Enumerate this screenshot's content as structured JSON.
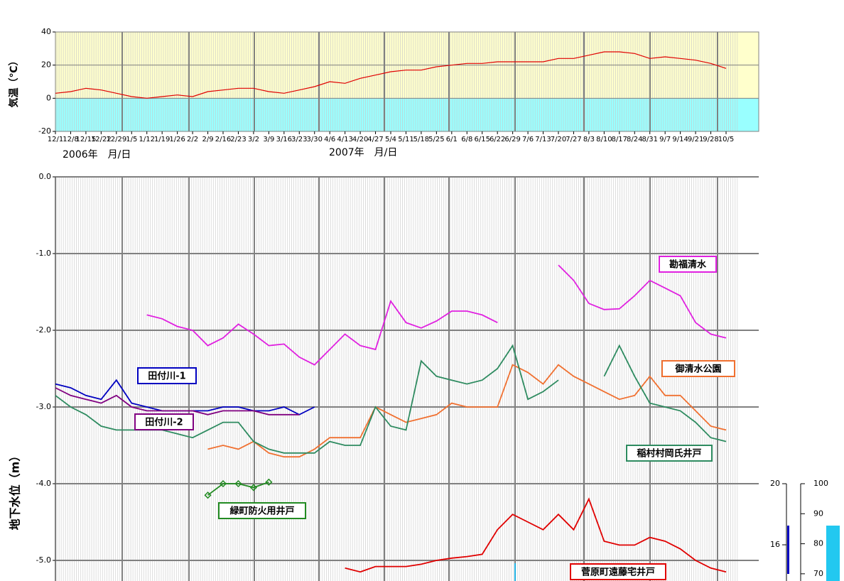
{
  "chart_data": [
    {
      "type": "line",
      "ylabel": "気温（℃）",
      "annotations": [
        "2006年　月/日",
        "2007年　月/日"
      ],
      "categories": [
        "12/1",
        "12/8",
        "12/15",
        "12/22",
        "12/29",
        "1/5",
        "1/12",
        "1/19",
        "1/26",
        "2/2",
        "2/9",
        "2/16",
        "2/23",
        "3/2",
        "3/9",
        "3/16",
        "3/23",
        "3/30",
        "4/6",
        "4/13",
        "4/20",
        "4/27",
        "5/4",
        "5/11",
        "5/18",
        "5/25",
        "6/1",
        "6/8",
        "6/15",
        "6/22",
        "6/29",
        "7/6",
        "7/13",
        "7/20",
        "7/27",
        "8/3",
        "8/10",
        "8/17",
        "8/24",
        "8/31",
        "9/7",
        "9/14",
        "9/21",
        "9/28",
        "10/5"
      ],
      "values": [
        3,
        4,
        6,
        5,
        3,
        1,
        0,
        1,
        2,
        1,
        4,
        5,
        6,
        6,
        4,
        3,
        5,
        7,
        10,
        9,
        12,
        14,
        16,
        17,
        17,
        19,
        20,
        21,
        21,
        22,
        22,
        22,
        22,
        24,
        24,
        26,
        28,
        28,
        27,
        24,
        25,
        24,
        23,
        21,
        18
      ],
      "color": "#e00000",
      "ylim": [
        -20,
        40
      ],
      "yticks": [
        40,
        20,
        0,
        -20
      ],
      "grid": true
    },
    {
      "type": "line",
      "ylabel": "地下水位（m）",
      "categories": [
        null,
        null,
        null,
        null,
        null,
        null,
        null,
        null,
        null,
        null,
        null,
        null,
        null,
        null,
        null,
        null,
        null,
        null,
        null,
        null,
        null,
        null,
        null,
        null,
        null,
        null,
        null,
        null,
        null,
        null,
        null,
        null,
        null,
        null,
        null,
        null,
        null,
        null,
        null,
        null,
        null,
        null,
        null,
        null,
        null
      ],
      "series": [
        {
          "name": "勘福清水",
          "color": "#e020e0",
          "values": [
            null,
            null,
            null,
            null,
            null,
            null,
            -1.8,
            -1.85,
            -1.95,
            -2.0,
            -2.2,
            -2.1,
            -1.92,
            -2.05,
            -2.2,
            -2.18,
            -2.35,
            -2.45,
            -2.25,
            -2.05,
            -2.2,
            -2.25,
            -1.62,
            -1.9,
            -1.97,
            -1.88,
            -1.75,
            -1.75,
            -1.8,
            -1.9,
            null,
            null,
            null,
            -1.15,
            -1.35,
            -1.65,
            -1.73,
            -1.72,
            -1.55,
            -1.35,
            -1.45,
            -1.55,
            -1.9,
            -2.05,
            -2.1
          ]
        },
        {
          "name": "御清水公園",
          "color": "#f07030",
          "values": [
            null,
            null,
            null,
            null,
            null,
            null,
            null,
            null,
            null,
            null,
            -3.55,
            -3.5,
            -3.55,
            -3.45,
            -3.6,
            -3.65,
            -3.65,
            -3.55,
            -3.4,
            -3.4,
            -3.4,
            -3.0,
            -3.1,
            -3.2,
            -3.15,
            -3.1,
            -2.95,
            -3.0,
            -3.0,
            -3.0,
            -2.45,
            -2.55,
            -2.7,
            -2.45,
            -2.6,
            -2.7,
            -2.8,
            -2.9,
            -2.85,
            -2.6,
            -2.85,
            -2.85,
            -3.05,
            -3.25,
            -3.3
          ]
        },
        {
          "name": "稲村村岡氏井戸",
          "color": "#2e8b60",
          "values": [
            -2.85,
            -3.0,
            -3.1,
            -3.25,
            -3.3,
            -3.3,
            -3.3,
            -3.3,
            -3.35,
            -3.4,
            -3.3,
            -3.2,
            -3.2,
            -3.45,
            -3.55,
            -3.6,
            -3.6,
            -3.6,
            -3.45,
            -3.5,
            -3.5,
            -3.0,
            -3.25,
            -3.3,
            -2.4,
            -2.6,
            -2.65,
            -2.7,
            -2.65,
            -2.5,
            -2.2,
            -2.9,
            -2.8,
            -2.65,
            null,
            null,
            -2.6,
            -2.2,
            -2.6,
            -2.95,
            -3.0,
            -3.05,
            -3.2,
            -3.4,
            -3.45
          ]
        },
        {
          "name": "田付川-1",
          "color": "#0000c0",
          "values": [
            -2.7,
            -2.75,
            -2.85,
            -2.9,
            -2.65,
            -2.95,
            -3.0,
            -3.05,
            -3.05,
            -3.05,
            -3.05,
            -3.0,
            -3.0,
            -3.05,
            -3.05,
            -3.0,
            -3.1,
            -3.0,
            null,
            null,
            null,
            null,
            null,
            null,
            null,
            null,
            null,
            null,
            null,
            null,
            null,
            null,
            null,
            null,
            null,
            null,
            null,
            null,
            null,
            null,
            null,
            null,
            null,
            null,
            null
          ]
        },
        {
          "name": "田付川-2",
          "color": "#800080",
          "values": [
            -2.75,
            -2.85,
            -2.9,
            -2.95,
            -2.85,
            -3.0,
            -3.05,
            -3.05,
            -3.05,
            -3.05,
            -3.1,
            -3.05,
            -3.05,
            -3.05,
            -3.1,
            -3.1,
            -3.1,
            null,
            null,
            null,
            null,
            null,
            null,
            null,
            null,
            null,
            null,
            null,
            null,
            null,
            null,
            null,
            null,
            null,
            null,
            null,
            null,
            null,
            null,
            null,
            null,
            null,
            null,
            null,
            null
          ]
        },
        {
          "name": "緑町防火用井戸",
          "color": "#228b22",
          "marker": "diamond",
          "values": [
            null,
            null,
            null,
            null,
            null,
            null,
            null,
            null,
            null,
            null,
            -4.15,
            -4.0,
            -4.0,
            -4.05,
            -3.98,
            null,
            null,
            null,
            null,
            null,
            null,
            null,
            null,
            null,
            null,
            null,
            null,
            null,
            null,
            null,
            null,
            null,
            null,
            null,
            null,
            null,
            null,
            null,
            null,
            null,
            null,
            null,
            null,
            null,
            null
          ]
        },
        {
          "name": "菅原町遠藤宅井戸",
          "color": "#e00000",
          "values": [
            null,
            null,
            null,
            null,
            null,
            null,
            null,
            null,
            null,
            null,
            null,
            null,
            null,
            null,
            null,
            null,
            null,
            null,
            null,
            -5.1,
            -5.15,
            -5.08,
            -5.08,
            -5.08,
            -5.05,
            -5.0,
            -4.97,
            -4.95,
            -4.92,
            -4.6,
            -4.4,
            -4.5,
            -4.6,
            -4.4,
            -4.6,
            -4.2,
            -4.75,
            -4.8,
            -4.8,
            -4.7,
            -4.75,
            -4.85,
            -5.0,
            -5.1,
            -5.15
          ]
        }
      ],
      "ylim": [
        -5.27,
        0
      ],
      "yticks": [
        {
          "value": 0,
          "label": "0.0"
        },
        {
          "value": -1,
          "label": "-1.0"
        },
        {
          "value": -2,
          "label": "-2.0"
        },
        {
          "value": -3,
          "label": "-3.0"
        },
        {
          "value": -4,
          "label": "-4.0"
        },
        {
          "value": -5,
          "label": "-5.0"
        }
      ],
      "grid": true,
      "y2lim": [
        13.63,
        20
      ],
      "y2ticks": [
        20,
        16
      ],
      "y3lim": [
        67.6,
        100
      ],
      "y3ticks": [
        100,
        90,
        80,
        70
      ]
    }
  ]
}
